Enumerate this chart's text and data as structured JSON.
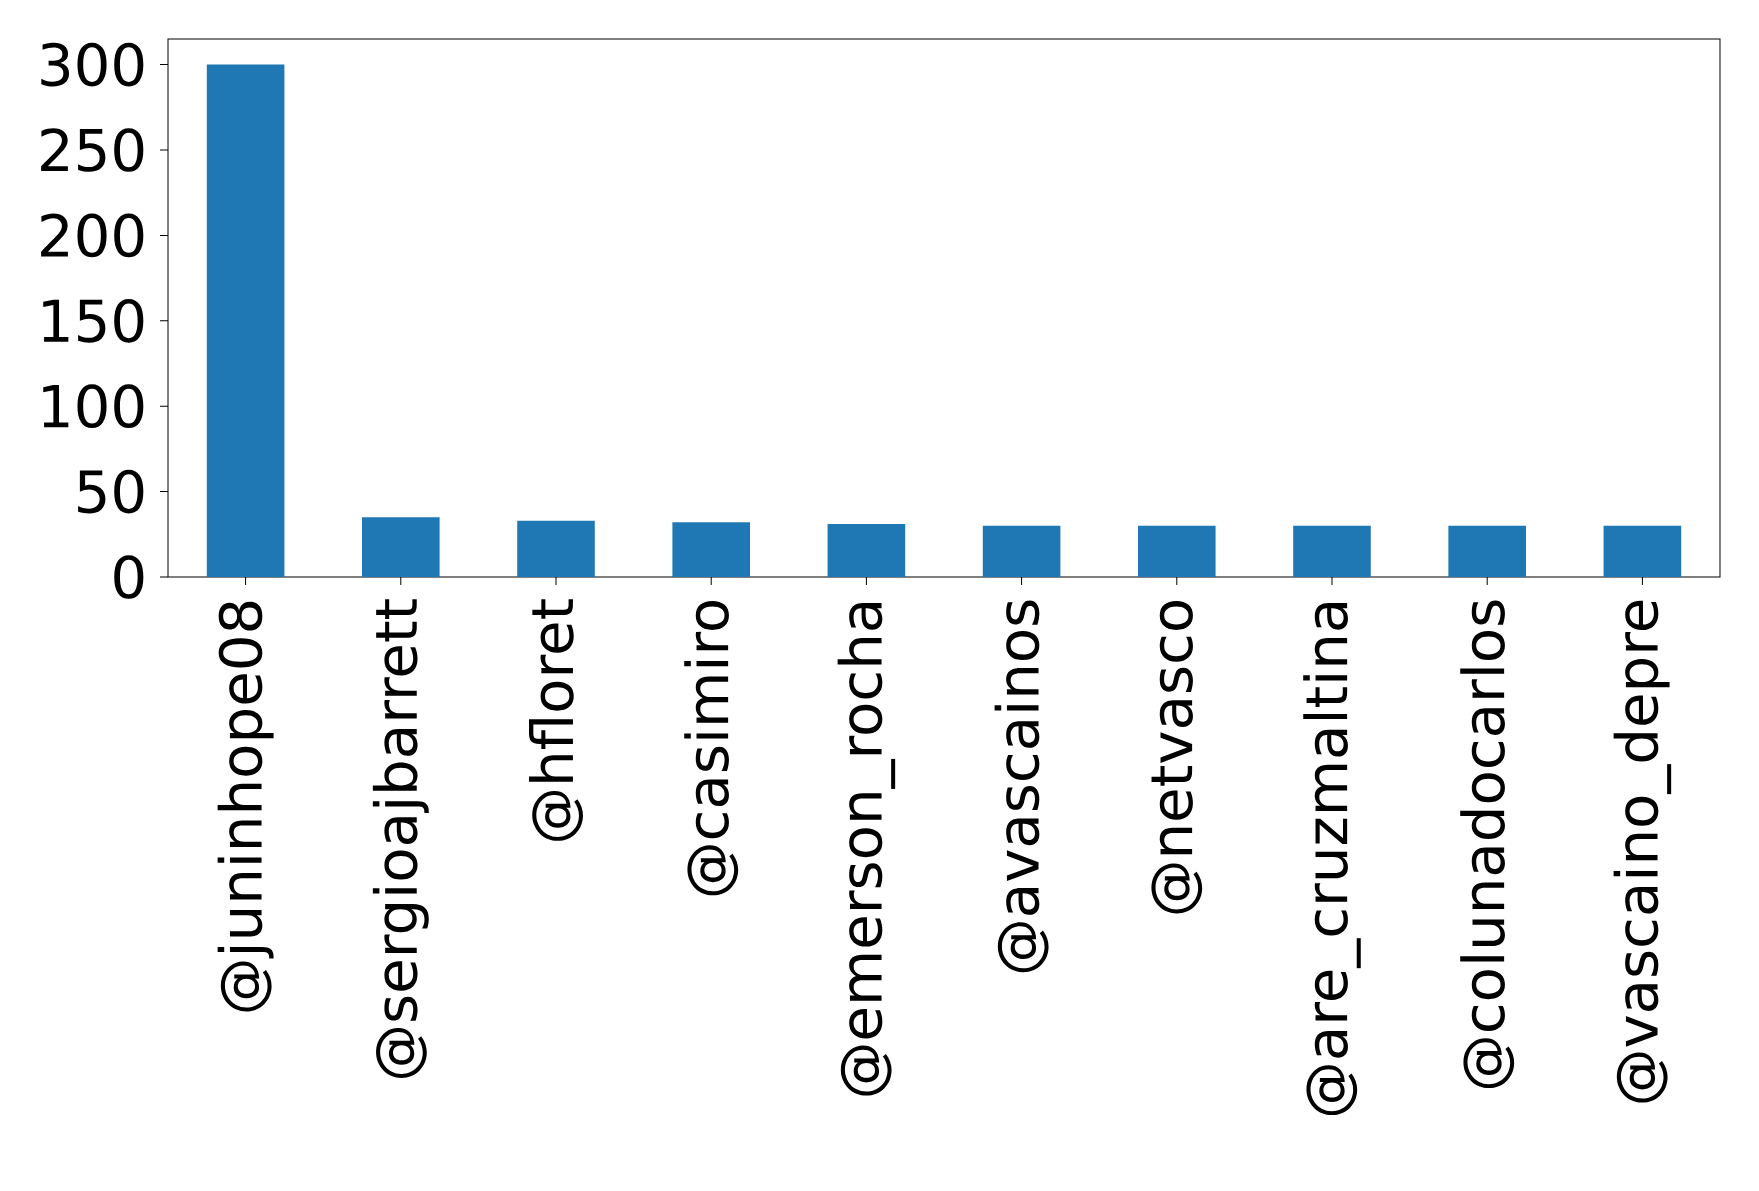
{
  "chart_data": {
    "type": "bar",
    "categories": [
      "@juninhope08",
      "@sergioajbarrett",
      "@hfloret",
      "@casimiro",
      "@emerson_rocha",
      "@avascainos",
      "@netvasco",
      "@are_cruzmaltina",
      "@colunadocarlos",
      "@vascaino_depre"
    ],
    "values": [
      300,
      35,
      33,
      32,
      31,
      30,
      30,
      30,
      30,
      30
    ],
    "color": "#1f77b4",
    "ylim": [
      0,
      315
    ],
    "yticks": [
      0,
      50,
      100,
      150,
      200,
      250,
      300
    ],
    "grid": false
  }
}
